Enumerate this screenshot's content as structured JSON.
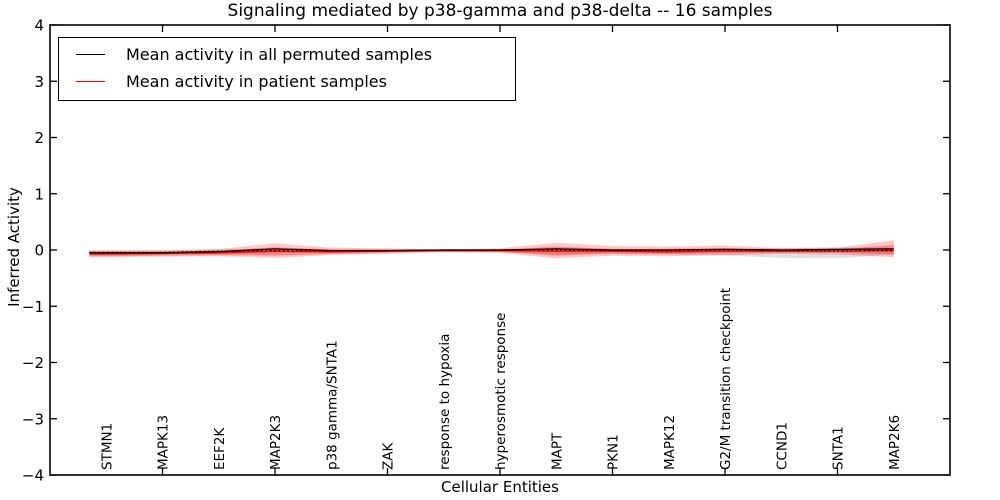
{
  "title": "Signaling mediated by p38-gamma and p38-delta -- 16 samples",
  "axes": {
    "ylabel": "Inferred Activity",
    "xlabel": "Cellular Entities",
    "ylim": [
      -4,
      4
    ],
    "xlim": [
      0,
      16
    ],
    "yticks": [
      {
        "value": 4,
        "label": "4"
      },
      {
        "value": 3,
        "label": "3"
      },
      {
        "value": 2,
        "label": "2"
      },
      {
        "value": 1,
        "label": "1"
      },
      {
        "value": 0,
        "label": "0"
      },
      {
        "value": -1,
        "label": "−1"
      },
      {
        "value": -2,
        "label": "−2"
      },
      {
        "value": -3,
        "label": "−3"
      },
      {
        "value": -4,
        "label": "−4"
      }
    ],
    "xtick_units": [
      2,
      4,
      6,
      8,
      10,
      12,
      14
    ]
  },
  "legend": {
    "items": [
      {
        "label": "Mean activity in all permuted samples",
        "color": "#000000"
      },
      {
        "label": "Mean activity in patient samples",
        "color": "#ff0000"
      }
    ]
  },
  "chart_data": {
    "type": "line",
    "title": "Signaling mediated by p38-gamma and p38-delta -- 16 samples",
    "xlabel": "Cellular Entities",
    "ylabel": "Inferred Activity",
    "ylim": [
      -4,
      4
    ],
    "xlim": [
      0,
      16
    ],
    "grid": false,
    "legend_position": "upper left",
    "categories": [
      "STMN1",
      "MAPK13",
      "EEF2K",
      "MAP2K3",
      "p38 gamma/SNTA1",
      "ZAK",
      "response to hypoxia",
      "hyperosmotic response",
      "MAPT",
      "PKN1",
      "MAPK12",
      "G2/M transition checkpoint",
      "CCND1",
      "SNTA1",
      "MAP2K6"
    ],
    "x": [
      1,
      2,
      3,
      4,
      5,
      6,
      7,
      8,
      9,
      10,
      11,
      12,
      13,
      14,
      15
    ],
    "x_start_unit": 0.7,
    "series": [
      {
        "name": "patient-mean",
        "label": "Mean activity in patient samples",
        "color": "#ff0000",
        "width": 1.5,
        "values": [
          -0.07,
          -0.06,
          -0.05,
          -0.02,
          -0.03,
          -0.02,
          -0.01,
          -0.01,
          -0.02,
          -0.02,
          -0.03,
          -0.02,
          -0.02,
          -0.02,
          -0.01
        ]
      },
      {
        "name": "permuted-mean",
        "label": "Mean activity in all permuted samples",
        "color": "#000000",
        "width": 1.3,
        "values": [
          -0.05,
          -0.05,
          -0.03,
          0.02,
          -0.01,
          -0.01,
          0.0,
          0.0,
          0.02,
          0.0,
          0.0,
          0.01,
          0.0,
          0.01,
          0.02
        ]
      },
      {
        "name": "permuted-mean-dotted",
        "label": "",
        "color": "#000000",
        "width": 1.2,
        "dash": "1.6 2.8",
        "values": [
          -0.04,
          -0.04,
          -0.02,
          -0.01,
          -0.01,
          -0.01,
          0.0,
          0.0,
          0.0,
          -0.01,
          -0.01,
          0.0,
          -0.01,
          -0.01,
          -0.01
        ]
      }
    ],
    "bands": [
      {
        "name": "permuted-range",
        "color": "#999999",
        "opacity": 0.3,
        "upper": [
          0.0,
          0.0,
          0.01,
          0.03,
          0.01,
          0.01,
          0.01,
          0.01,
          0.03,
          0.02,
          0.02,
          0.03,
          0.04,
          0.05,
          0.04
        ],
        "lower": [
          -0.08,
          -0.08,
          -0.07,
          -0.06,
          -0.05,
          -0.04,
          -0.03,
          -0.04,
          -0.08,
          -0.07,
          -0.08,
          -0.1,
          -0.14,
          -0.15,
          -0.08
        ]
      },
      {
        "name": "patient-range-outer",
        "color": "#ff0000",
        "opacity": 0.22,
        "upper": [
          -0.01,
          -0.01,
          0.02,
          0.12,
          0.04,
          0.03,
          0.01,
          0.03,
          0.13,
          0.07,
          0.06,
          0.08,
          0.03,
          0.04,
          0.17
        ],
        "lower": [
          -0.13,
          -0.12,
          -0.11,
          -0.14,
          -0.09,
          -0.07,
          -0.04,
          -0.05,
          -0.15,
          -0.1,
          -0.11,
          -0.09,
          -0.07,
          -0.08,
          -0.13
        ]
      },
      {
        "name": "patient-range-inner",
        "color": "#ff0000",
        "opacity": 0.3,
        "upper": [
          -0.03,
          -0.03,
          -0.01,
          0.05,
          0.01,
          0.01,
          0.0,
          0.01,
          0.06,
          0.02,
          0.02,
          0.03,
          0.0,
          0.01,
          0.09
        ],
        "lower": [
          -0.11,
          -0.1,
          -0.09,
          -0.1,
          -0.07,
          -0.05,
          -0.02,
          -0.03,
          -0.1,
          -0.06,
          -0.07,
          -0.06,
          -0.05,
          -0.05,
          -0.08
        ]
      }
    ]
  }
}
